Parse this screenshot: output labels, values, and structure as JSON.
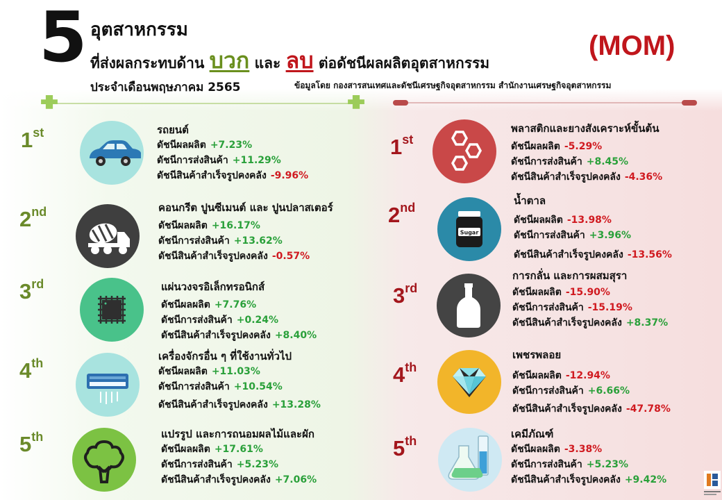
{
  "header": {
    "number": "5",
    "title_line1": "อุตสาหกรรม",
    "title_line2_a": "ที่ส่งผลกระทบด้าน",
    "positive_word": "บวก",
    "title_line2_b": "และ",
    "negative_word": "ลบ",
    "title_line2_c": "ต่อดัชนีผลผลิตอุตสาหกรรม",
    "period": "ประจำเดือนพฤษภาคม 2565",
    "source": "ข้อมูลโดย กองสารสนเทศและดัชนีเศรษฐกิจอุตสาหกรรม สำนักงานเศรษฐกิจอุตสาหกรรม",
    "mom": "(MOM)"
  },
  "labels": {
    "production": "ดัชนีผลผลิต",
    "shipment": "ดัชนีการส่งสินค้า",
    "inventory": "ดัชนีสินค้าสำเร็จรูปคงคลัง"
  },
  "positive": [
    {
      "rank": "1",
      "suffix": "st",
      "name": "รถยนต์",
      "production": "+7.23%",
      "shipment": "+11.29%",
      "inventory": "-9.96%",
      "icon": "car-icon",
      "color": "#a8e3df"
    },
    {
      "rank": "2",
      "suffix": "nd",
      "name": "คอนกรีต ปูนซีเมนต์ และ ปูนปลาสเตอร์",
      "production": "+16.17%",
      "shipment": "+13.62%",
      "inventory": "-0.57%",
      "icon": "cement-truck-icon",
      "color": "#3f3f3f"
    },
    {
      "rank": "3",
      "suffix": "rd",
      "name": "แผ่นวงจรอิเล็กทรอนิกส์",
      "production": "+7.76%",
      "shipment": "+0.24%",
      "inventory": "+8.40%",
      "icon": "microchip-icon",
      "color": "#49c28a"
    },
    {
      "rank": "4",
      "suffix": "th",
      "name": "เครื่องจักรอื่น ๆ ที่ใช้งานทั่วไป",
      "production": "+11.03%",
      "shipment": "+10.54%",
      "inventory": "+13.28%",
      "icon": "air-conditioner-icon",
      "color": "#a8e3df"
    },
    {
      "rank": "5",
      "suffix": "th",
      "name": "แปรรูป และการถนอมผลไม้และผัก",
      "production": "+17.61%",
      "shipment": "+5.23%",
      "inventory": "+7.06%",
      "icon": "tree-icon",
      "color": "#7cc243"
    }
  ],
  "negative": [
    {
      "rank": "1",
      "suffix": "st",
      "name": "พลาสติกและยางสังเคราะห์ขั้นต้น",
      "production": "-5.29%",
      "shipment": "+8.45%",
      "inventory": "-4.36%",
      "icon": "hexagon-molecule-icon",
      "color": "#c94848"
    },
    {
      "rank": "2",
      "suffix": "nd",
      "name": "น้ำตาล",
      "production": "-13.98%",
      "shipment": "+3.96%",
      "inventory": "-13.56%",
      "icon": "sugar-jar-icon",
      "color": "#2b8aa8",
      "jar_label": "Sugar"
    },
    {
      "rank": "3",
      "suffix": "rd",
      "name": "การกลั่น และการผสมสุรา",
      "production": "-15.90%",
      "shipment": "-15.19%",
      "inventory": "+8.37%",
      "icon": "bottle-icon",
      "color": "#444444"
    },
    {
      "rank": "4",
      "suffix": "th",
      "name": "เพชรพลอย",
      "production": "-12.94%",
      "shipment": "+6.66%",
      "inventory": "-47.78%",
      "icon": "diamond-icon",
      "color": "#f2b52a"
    },
    {
      "rank": "5",
      "suffix": "th",
      "name": "เคมีภัณฑ์",
      "production": "-3.38%",
      "shipment": "+5.23%",
      "inventory": "+9.42%",
      "icon": "lab-flask-icon",
      "color": "#cfe9f3"
    }
  ]
}
